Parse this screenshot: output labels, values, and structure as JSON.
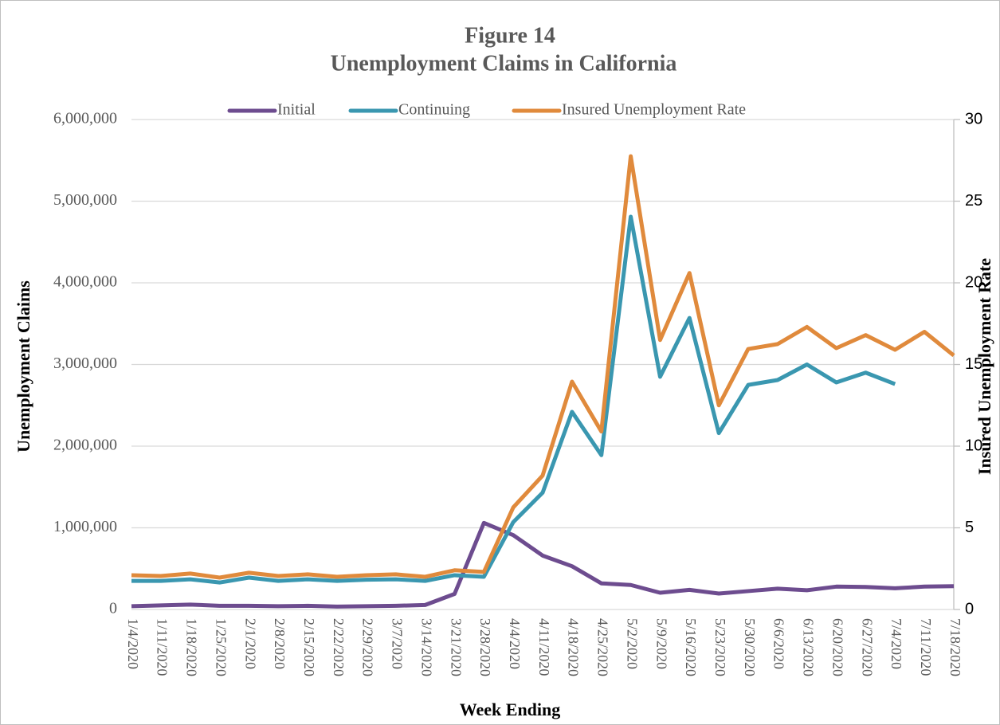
{
  "chart_data": {
    "type": "line",
    "title": "Figure 14",
    "subtitle": "Unemployment Claims in California",
    "x_label": "Week Ending",
    "y_label": "Unemployment Claims",
    "y2_label": "Insured Unemployment Rate",
    "categories": [
      "1/4/2020",
      "1/11/2020",
      "1/18/2020",
      "1/25/2020",
      "2/1/2020",
      "2/8/2020",
      "2/15/2020",
      "2/22/2020",
      "2/29/2020",
      "3/7/2020",
      "3/14/2020",
      "3/21/2020",
      "3/28/2020",
      "4/4/2020",
      "4/11/2020",
      "4/18/2020",
      "4/25/2020",
      "5/2/2020",
      "5/9/2020",
      "5/16/2020",
      "5/23/2020",
      "5/30/2020",
      "6/6/2020",
      "6/13/2020",
      "6/20/2020",
      "6/27/2020",
      "7/4/2020",
      "7/11/2020",
      "7/18/2020"
    ],
    "series": [
      {
        "name": "Initial",
        "color": "#6d4c8f",
        "values": [
          40000,
          50000,
          60000,
          45000,
          45000,
          40000,
          45000,
          35000,
          40000,
          45000,
          55000,
          190000,
          1060000,
          910000,
          660000,
          530000,
          320000,
          300000,
          205000,
          240000,
          195000,
          225000,
          255000,
          235000,
          280000,
          275000,
          260000,
          280000,
          285000
        ]
      },
      {
        "name": "Continuing",
        "color": "#3a97b0",
        "values": [
          350000,
          350000,
          370000,
          330000,
          390000,
          350000,
          370000,
          350000,
          365000,
          370000,
          350000,
          420000,
          400000,
          1070000,
          1430000,
          2420000,
          1890000,
          4810000,
          2850000,
          3570000,
          2160000,
          2750000,
          2810000,
          3000000,
          2780000,
          2900000,
          2760000,
          null,
          null
        ]
      },
      {
        "name": "Insured Unemployment Rate",
        "color": "#e08a3c",
        "axis": "y2",
        "values": [
          2.1,
          2.05,
          2.2,
          1.95,
          2.25,
          2.05,
          2.15,
          2.0,
          2.1,
          2.15,
          2.0,
          2.4,
          2.3,
          6.25,
          8.2,
          13.95,
          10.9,
          27.75,
          16.5,
          20.6,
          12.5,
          15.95,
          16.25,
          17.3,
          16.0,
          16.8,
          15.9,
          17.0,
          15.55
        ]
      }
    ],
    "ylim": [
      0,
      6000000
    ],
    "yticks": [
      0,
      {
        "value": 1000000,
        "label": "1,000,000"
      },
      {
        "value": 2000000,
        "label": "2,000,000"
      },
      {
        "value": 3000000,
        "label": "3,000,000"
      },
      {
        "value": 4000000,
        "label": "4,000,000"
      },
      {
        "value": 5000000,
        "label": "5,000,000"
      },
      {
        "value": 6000000,
        "label": "6,000,000"
      }
    ],
    "y2lim": [
      0,
      30
    ],
    "y2ticks": [
      0,
      5,
      10,
      15,
      20,
      25,
      30
    ],
    "grid": true,
    "legend": "top"
  }
}
